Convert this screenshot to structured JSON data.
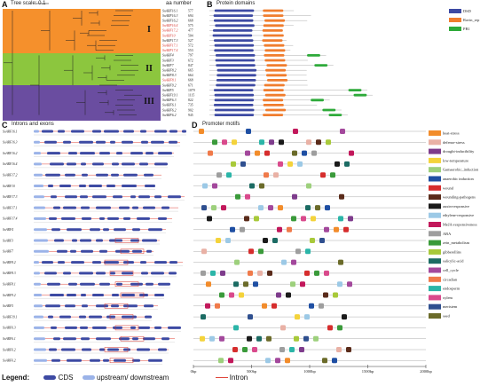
{
  "panels": {
    "A": {
      "letter": "A",
      "tree_scale": "Tree scale: 0.1",
      "aa_header": "aa number",
      "clades": [
        "I",
        "II",
        "III"
      ]
    },
    "B": {
      "letter": "B",
      "title": "Protein domains",
      "legend": [
        {
          "label": "DSD",
          "color": "#3d4aa3"
        },
        {
          "label": "Ravin_rep",
          "color": "#f07d2e"
        },
        {
          "label": "PB1",
          "color": "#2eaa3a"
        }
      ]
    },
    "C": {
      "letter": "C",
      "title": "Introns and exons"
    },
    "D": {
      "letter": "D",
      "title": "Promoter motifs",
      "axis": [
        "0bp",
        "500bp",
        "1000bp",
        "1500bp",
        "2000bp"
      ],
      "legend": [
        {
          "label": "heat-stress",
          "color": "#f28c2b"
        },
        {
          "label": "defense-stress",
          "color": "#e9b1a5"
        },
        {
          "label": "drought-inducibility",
          "color": "#7e3c8c"
        },
        {
          "label": "low-temperature",
          "color": "#f4d33b"
        },
        {
          "label": "Gamaerobic_induction",
          "color": "#9dd07c"
        },
        {
          "label": "anaerobic induction",
          "color": "#1f4fa3"
        },
        {
          "label": "wound",
          "color": "#d62d2d"
        },
        {
          "label": "wounding-pathogens",
          "color": "#5a2b1a"
        },
        {
          "label": "auxin-responsive",
          "color": "#1a1a1a"
        },
        {
          "label": "ethylene-responsive",
          "color": "#9cc9e6"
        },
        {
          "label": "MeJA-responsiveness",
          "color": "#c2185b"
        },
        {
          "label": "ABA",
          "color": "#9e9e9e"
        },
        {
          "label": "zein_metabolism",
          "color": "#3a9a3a"
        },
        {
          "label": "gibberellins",
          "color": "#a8c93a"
        },
        {
          "label": "salicylic-acid",
          "color": "#1b6b63"
        },
        {
          "label": "cell_cycle",
          "color": "#a3489c"
        },
        {
          "label": "circadian",
          "color": "#f07a4a"
        },
        {
          "label": "endosperm",
          "color": "#2bb5a8"
        },
        {
          "label": "xylem",
          "color": "#d94a8c"
        },
        {
          "label": "meristem",
          "color": "#2f4f8f"
        },
        {
          "label": "seed",
          "color": "#6b6b2a"
        }
      ]
    }
  },
  "genes": [
    {
      "name": "SoARF16.1",
      "aa": "577",
      "highlight": false
    },
    {
      "name": "SoARF16.3",
      "aa": "694",
      "highlight": false
    },
    {
      "name": "SoARF16.2",
      "aa": "668",
      "highlight": false
    },
    {
      "name": "SoARF16.4",
      "aa": "575",
      "highlight": true
    },
    {
      "name": "SoARF17.2",
      "aa": "477",
      "highlight": true
    },
    {
      "name": "SoARF10",
      "aa": "504",
      "highlight": true
    },
    {
      "name": "SoARF17.3",
      "aa": "527",
      "highlight": false
    },
    {
      "name": "SoARF17.1",
      "aa": "572",
      "highlight": true
    },
    {
      "name": "SoARF17.4",
      "aa": "553",
      "highlight": true
    },
    {
      "name": "SoARF4",
      "aa": "797",
      "highlight": false
    },
    {
      "name": "SoARF3",
      "aa": "672",
      "highlight": false
    },
    {
      "name": "SoARF7",
      "aa": "847",
      "highlight": false
    },
    {
      "name": "SoARF8.2",
      "aa": "665",
      "highlight": false
    },
    {
      "name": "SoARF8.3",
      "aa": "664",
      "highlight": false
    },
    {
      "name": "SoARF8.1",
      "aa": "668",
      "highlight": true
    },
    {
      "name": "SoARF9.2",
      "aa": "671",
      "highlight": false
    },
    {
      "name": "SoARF5",
      "aa": "1079",
      "highlight": false
    },
    {
      "name": "SoARF19.1",
      "aa": "1115",
      "highlight": false
    },
    {
      "name": "SoARF6.3",
      "aa": "822",
      "highlight": false
    },
    {
      "name": "SoARF6.1",
      "aa": "735",
      "highlight": false
    },
    {
      "name": "SoARF6.2",
      "aa": "902",
      "highlight": false
    },
    {
      "name": "SoARF6.2",
      "aa": "945",
      "highlight": false
    }
  ],
  "gene_structure_names": [
    "SoARF16.1",
    "SoARF16.3",
    "SoARF16.2",
    "SoARF16.4",
    "SoARF17.2",
    "SoARF10",
    "SoARF17.3",
    "SoARF17.1",
    "SoARF17.4",
    "SoARF4",
    "SoARF3",
    "SoARF7",
    "SoARF8.2",
    "SoARF8.3",
    "SoARF8.1",
    "SoARF9.2",
    "SoARF5",
    "SoARF19.1",
    "SoARF6.3",
    "SoARF6.1",
    "SoARF6.2",
    "SoARF6.2"
  ],
  "bottom_legend": {
    "title": "Legend:",
    "items": [
      {
        "label": "CDS",
        "color": "#3d4aa3"
      },
      {
        "label": "upstream/ downstream",
        "color": "#9bb3e8"
      },
      {
        "label": "Intron",
        "color": "#e0453a"
      }
    ]
  }
}
